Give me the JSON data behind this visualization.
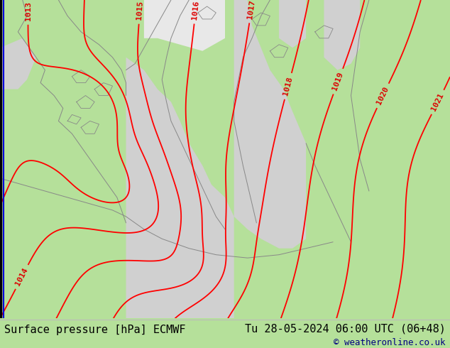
{
  "title_left": "Surface pressure [hPa] ECMWF",
  "title_right": "Tu 28-05-2024 06:00 UTC (06+48)",
  "copyright": "© weatheronline.co.uk",
  "bg_color": "#b5e09a",
  "land_color": "#b5e09a",
  "sea_color": "#d0d0d0",
  "contour_color": "#ff0000",
  "border_color": "#888888",
  "label_color": "#dd0000",
  "font_size_title": 11,
  "font_size_copyright": 9,
  "text_color": "#000080",
  "bottom_bar_color": "#ffffff"
}
